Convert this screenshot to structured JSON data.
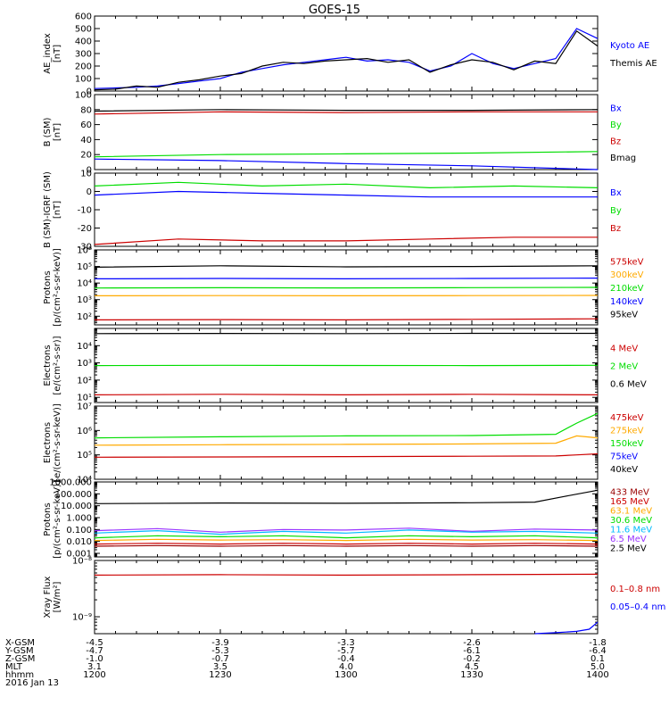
{
  "title": "GOES-15",
  "colors": {
    "black": "#000000",
    "blue": "#0000ff",
    "red": "#cc0000",
    "green": "#00dd00",
    "orange": "#ffaa00",
    "cyan": "#00bbff",
    "purple": "#9933ff",
    "darkred": "#990000"
  },
  "chart_data": [
    {
      "type": "line",
      "ylabel": [
        "AE_index",
        "[nT]"
      ],
      "yscale": "linear",
      "ylim": [
        0,
        600
      ],
      "yticks": [
        0,
        100,
        200,
        300,
        400,
        500,
        600
      ],
      "ytick_labels": [
        "0",
        "100",
        "200",
        "300",
        "400",
        "500",
        "600"
      ],
      "legend": [
        {
          "name": "Kyoto AE",
          "color": "#0000ff"
        },
        {
          "name": "Themis AE",
          "color": "#000000"
        }
      ],
      "series": [
        {
          "name": "Kyoto AE",
          "color": "#0000ff",
          "x": [
            0,
            5,
            10,
            15,
            20,
            25,
            30,
            35,
            40,
            45,
            50,
            55,
            60,
            65,
            70,
            75,
            80,
            85,
            90,
            95,
            100,
            105,
            110,
            115,
            120
          ],
          "y": [
            20,
            25,
            30,
            40,
            60,
            80,
            100,
            150,
            180,
            210,
            230,
            250,
            270,
            240,
            250,
            230,
            160,
            200,
            300,
            220,
            180,
            220,
            260,
            500,
            420
          ]
        },
        {
          "name": "Themis AE",
          "color": "#000000",
          "x": [
            0,
            5,
            10,
            15,
            20,
            25,
            30,
            35,
            40,
            45,
            50,
            55,
            60,
            65,
            70,
            75,
            80,
            85,
            90,
            95,
            100,
            105,
            110,
            115,
            120
          ],
          "y": [
            10,
            15,
            40,
            30,
            70,
            90,
            120,
            140,
            200,
            230,
            220,
            240,
            250,
            260,
            230,
            250,
            150,
            210,
            250,
            230,
            170,
            240,
            220,
            480,
            360
          ]
        }
      ]
    },
    {
      "type": "line",
      "ylabel": [
        "B (SM)",
        "[nT]"
      ],
      "yscale": "linear",
      "ylim": [
        0,
        100
      ],
      "yticks": [
        0,
        20,
        40,
        60,
        80,
        100
      ],
      "ytick_labels": [
        "0",
        "20",
        "40",
        "60",
        "80",
        "100"
      ],
      "legend": [
        {
          "name": "Bx",
          "color": "#0000ff"
        },
        {
          "name": "By",
          "color": "#00dd00"
        },
        {
          "name": "Bz",
          "color": "#cc0000"
        },
        {
          "name": "Bmag",
          "color": "#000000"
        }
      ],
      "series": [
        {
          "name": "Bmag",
          "color": "#000000",
          "x": [
            0,
            30,
            60,
            90,
            120
          ],
          "y": [
            78,
            80,
            79,
            79,
            80
          ]
        },
        {
          "name": "Bz",
          "color": "#cc0000",
          "x": [
            0,
            30,
            60,
            90,
            120
          ],
          "y": [
            74,
            77,
            76,
            77,
            77
          ]
        },
        {
          "name": "By",
          "color": "#00dd00",
          "x": [
            0,
            30,
            60,
            90,
            120
          ],
          "y": [
            17,
            20,
            21,
            22,
            24
          ]
        },
        {
          "name": "Bx",
          "color": "#0000ff",
          "x": [
            0,
            30,
            60,
            90,
            120
          ],
          "y": [
            14,
            12,
            8,
            5,
            0
          ]
        }
      ]
    },
    {
      "type": "line",
      "ylabel": [
        "B (SM)-IGRF (SM)",
        "[nT]"
      ],
      "yscale": "linear",
      "ylim": [
        -30,
        10
      ],
      "yticks": [
        -30,
        -20,
        -10,
        0,
        10
      ],
      "ytick_labels": [
        "-30",
        "-20",
        "-10",
        "0",
        "10"
      ],
      "legend": [
        {
          "name": "Bx",
          "color": "#0000ff"
        },
        {
          "name": "By",
          "color": "#00dd00"
        },
        {
          "name": "Bz",
          "color": "#cc0000"
        }
      ],
      "series": [
        {
          "name": "By",
          "color": "#00dd00",
          "x": [
            0,
            20,
            40,
            60,
            80,
            100,
            120
          ],
          "y": [
            3,
            5,
            3,
            4,
            2,
            3,
            2
          ]
        },
        {
          "name": "Bx",
          "color": "#0000ff",
          "x": [
            0,
            20,
            40,
            60,
            80,
            100,
            120
          ],
          "y": [
            -2,
            0,
            -1,
            -2,
            -3,
            -3,
            -3
          ]
        },
        {
          "name": "Bz",
          "color": "#cc0000",
          "x": [
            0,
            20,
            40,
            60,
            80,
            100,
            120
          ],
          "y": [
            -29,
            -26,
            -27,
            -27,
            -26,
            -25,
            -25
          ]
        }
      ]
    },
    {
      "type": "line",
      "ylabel": [
        "Protons",
        "[p/(cm²-s-sr-keV)]"
      ],
      "yscale": "log",
      "ylim": [
        30,
        1000000
      ],
      "yticks": [
        100,
        1000,
        10000,
        100000,
        1000000
      ],
      "ytick_labels": [
        "10²",
        "10³",
        "10⁴",
        "10⁵",
        "10⁶"
      ],
      "legend": [
        {
          "name": "575keV",
          "color": "#cc0000"
        },
        {
          "name": "300keV",
          "color": "#ffaa00"
        },
        {
          "name": "210keV",
          "color": "#00dd00"
        },
        {
          "name": "140keV",
          "color": "#0000ff"
        },
        {
          "name": "95keV",
          "color": "#000000"
        }
      ],
      "series": [
        {
          "name": "95keV",
          "color": "#000000",
          "x": [
            0,
            30,
            60,
            90,
            120
          ],
          "y": [
            90000,
            110000,
            95000,
            100000,
            110000
          ]
        },
        {
          "name": "140keV",
          "color": "#0000ff",
          "x": [
            0,
            30,
            60,
            90,
            120
          ],
          "y": [
            18000,
            19000,
            18000,
            19000,
            20000
          ]
        },
        {
          "name": "210keV",
          "color": "#00dd00",
          "x": [
            0,
            30,
            60,
            90,
            120
          ],
          "y": [
            5000,
            5200,
            5100,
            5300,
            5500
          ]
        },
        {
          "name": "300keV",
          "color": "#ffaa00",
          "x": [
            0,
            30,
            60,
            90,
            120
          ],
          "y": [
            1700,
            1750,
            1700,
            1750,
            1800
          ]
        },
        {
          "name": "575keV",
          "color": "#cc0000",
          "x": [
            0,
            30,
            60,
            90,
            120
          ],
          "y": [
            60,
            62,
            60,
            65,
            70
          ]
        }
      ]
    },
    {
      "type": "line",
      "ylabel": [
        "Electrons",
        "[e/(cm²-s-sr)]"
      ],
      "yscale": "log",
      "ylim": [
        5,
        100000
      ],
      "yticks": [
        10,
        100,
        1000,
        10000
      ],
      "ytick_labels": [
        "10¹",
        "10²",
        "10³",
        "10⁴"
      ],
      "legend": [
        {
          "name": "4 MeV",
          "color": "#cc0000"
        },
        {
          "name": "2 MeV",
          "color": "#00dd00"
        },
        {
          "name": "0.6 MeV",
          "color": "#000000"
        }
      ],
      "series": [
        {
          "name": "0.6 MeV",
          "color": "#000000",
          "x": [
            0,
            30,
            60,
            90,
            120
          ],
          "y": [
            50000,
            51000,
            50000,
            52000,
            52000
          ]
        },
        {
          "name": "2 MeV",
          "color": "#00dd00",
          "x": [
            0,
            30,
            60,
            90,
            120
          ],
          "y": [
            700,
            720,
            710,
            700,
            720
          ]
        },
        {
          "name": "4 MeV",
          "color": "#cc0000",
          "x": [
            0,
            30,
            60,
            90,
            120
          ],
          "y": [
            14,
            15,
            14,
            15,
            14
          ]
        }
      ]
    },
    {
      "type": "line",
      "ylabel": [
        "Electrons",
        "[e/(cm²-s-sr-keV)]"
      ],
      "yscale": "log",
      "ylim": [
        10000,
        10000000
      ],
      "yticks": [
        10000,
        100000,
        1000000,
        10000000
      ],
      "ytick_labels": [
        "10⁴",
        "10⁵",
        "10⁶",
        "10⁷"
      ],
      "legend": [
        {
          "name": "475keV",
          "color": "#cc0000"
        },
        {
          "name": "275keV",
          "color": "#ffaa00"
        },
        {
          "name": "150keV",
          "color": "#00dd00"
        },
        {
          "name": "75keV",
          "color": "#0000ff"
        },
        {
          "name": "40keV",
          "color": "#000000"
        }
      ],
      "series": [
        {
          "name": "150keV",
          "color": "#00dd00",
          "x": [
            0,
            30,
            60,
            90,
            110,
            115,
            120
          ],
          "y": [
            500000,
            550000,
            600000,
            620000,
            700000,
            2000000,
            5000000
          ]
        },
        {
          "name": "275keV",
          "color": "#ffaa00",
          "x": [
            0,
            30,
            60,
            90,
            110,
            115,
            120
          ],
          "y": [
            250000,
            260000,
            270000,
            280000,
            300000,
            600000,
            500000
          ]
        },
        {
          "name": "475keV",
          "color": "#cc0000",
          "x": [
            0,
            30,
            60,
            90,
            110,
            115,
            120
          ],
          "y": [
            80000,
            82000,
            85000,
            88000,
            90000,
            100000,
            110000
          ]
        }
      ]
    },
    {
      "type": "line",
      "ylabel": [
        "Protons",
        "[p/(cm²-s-sr-keV)]"
      ],
      "yscale": "log",
      "ylim": [
        0.0005,
        1000
      ],
      "yticks": [
        0.001,
        0.01,
        0.1,
        1,
        10,
        100,
        1000
      ],
      "ytick_labels": [
        "0.001",
        "0.010",
        "0.100",
        "1.000",
        "10.000",
        "100.000",
        "1000.000"
      ],
      "legend": [
        {
          "name": "433 MeV",
          "color": "#990000"
        },
        {
          "name": "165 MeV",
          "color": "#cc0000"
        },
        {
          "name": "63.1 MeV",
          "color": "#ffaa00"
        },
        {
          "name": "30.6 MeV",
          "color": "#00dd00"
        },
        {
          "name": "11.6 MeV",
          "color": "#00bbff"
        },
        {
          "name": "6.5 MeV",
          "color": "#9933ff"
        },
        {
          "name": "2.5 MeV",
          "color": "#000000"
        }
      ],
      "series": [
        {
          "name": "2.5 MeV",
          "color": "#000000",
          "x": [
            0,
            30,
            60,
            90,
            105,
            112,
            120
          ],
          "y": [
            15,
            17,
            16,
            18,
            20,
            60,
            200
          ]
        },
        {
          "name": "6.5 MeV",
          "color": "#9933ff",
          "x": [
            0,
            15,
            30,
            45,
            60,
            75,
            90,
            105,
            120
          ],
          "y": [
            0.08,
            0.12,
            0.06,
            0.1,
            0.09,
            0.13,
            0.07,
            0.11,
            0.09
          ]
        },
        {
          "name": "11.6 MeV",
          "color": "#00bbff",
          "x": [
            0,
            15,
            30,
            45,
            60,
            75,
            90,
            105,
            120
          ],
          "y": [
            0.05,
            0.08,
            0.04,
            0.07,
            0.05,
            0.09,
            0.06,
            0.07,
            0.05
          ]
        },
        {
          "name": "30.6 MeV",
          "color": "#00dd00",
          "x": [
            0,
            15,
            30,
            45,
            60,
            75,
            90,
            105,
            120
          ],
          "y": [
            0.02,
            0.03,
            0.025,
            0.03,
            0.02,
            0.03,
            0.025,
            0.03,
            0.02
          ]
        },
        {
          "name": "63.1 MeV",
          "color": "#ffaa00",
          "x": [
            0,
            15,
            30,
            45,
            60,
            75,
            90,
            105,
            120
          ],
          "y": [
            0.012,
            0.015,
            0.013,
            0.014,
            0.012,
            0.015,
            0.013,
            0.014,
            0.012
          ]
        },
        {
          "name": "165 MeV",
          "color": "#cc0000",
          "x": [
            0,
            15,
            30,
            45,
            60,
            75,
            90,
            105,
            120
          ],
          "y": [
            0.006,
            0.007,
            0.006,
            0.007,
            0.006,
            0.007,
            0.006,
            0.007,
            0.006
          ]
        },
        {
          "name": "433 MeV",
          "color": "#990000",
          "x": [
            0,
            15,
            30,
            45,
            60,
            75,
            90,
            105,
            120
          ],
          "y": [
            0.004,
            0.0045,
            0.004,
            0.0045,
            0.004,
            0.0045,
            0.004,
            0.0045,
            0.004
          ]
        }
      ]
    },
    {
      "type": "line",
      "ylabel": [
        "Xray Flux",
        "[W/m²]"
      ],
      "yscale": "log",
      "ylim": [
        5e-10,
        1e-08
      ],
      "yticks": [
        1e-09,
        1e-08
      ],
      "ytick_labels": [
        "10⁻⁹",
        "10⁻⁸"
      ],
      "legend": [
        {
          "name": "0.1–0.8 nm",
          "color": "#cc0000"
        },
        {
          "name": "0.05–0.4 nm",
          "color": "#0000ff"
        }
      ],
      "series": [
        {
          "name": "0.1–0.8 nm",
          "color": "#cc0000",
          "x": [
            0,
            30,
            60,
            90,
            120
          ],
          "y": [
            5.5e-09,
            5.6e-09,
            5.5e-09,
            5.6e-09,
            5.7e-09
          ]
        },
        {
          "name": "0.05–0.4 nm",
          "color": "#0000ff",
          "x": [
            105,
            110,
            115,
            118,
            120
          ],
          "y": [
            5e-10,
            5.2e-10,
            5.5e-10,
            6e-10,
            8e-10
          ]
        }
      ]
    }
  ],
  "x_axis_table": {
    "row_labels": [
      "X-GSM",
      "Y-GSM",
      "Z-GSM",
      "MLT",
      "hhmm",
      "2016 Jan 13"
    ],
    "columns": [
      {
        "x": 0,
        "values": [
          "-4.5",
          "-4.7",
          "-1.0",
          "3.1",
          "1200"
        ]
      },
      {
        "x": 30,
        "values": [
          "-3.9",
          "-5.3",
          "-0.7",
          "3.5",
          "1230"
        ]
      },
      {
        "x": 60,
        "values": [
          "-3.3",
          "-5.7",
          "-0.4",
          "4.0",
          "1300"
        ]
      },
      {
        "x": 90,
        "values": [
          "-2.6",
          "-6.1",
          "-0.2",
          "4.5",
          "1330"
        ]
      },
      {
        "x": 120,
        "values": [
          "-1.8",
          "-6.4",
          "0.1",
          "5.0",
          "1400"
        ]
      }
    ]
  }
}
